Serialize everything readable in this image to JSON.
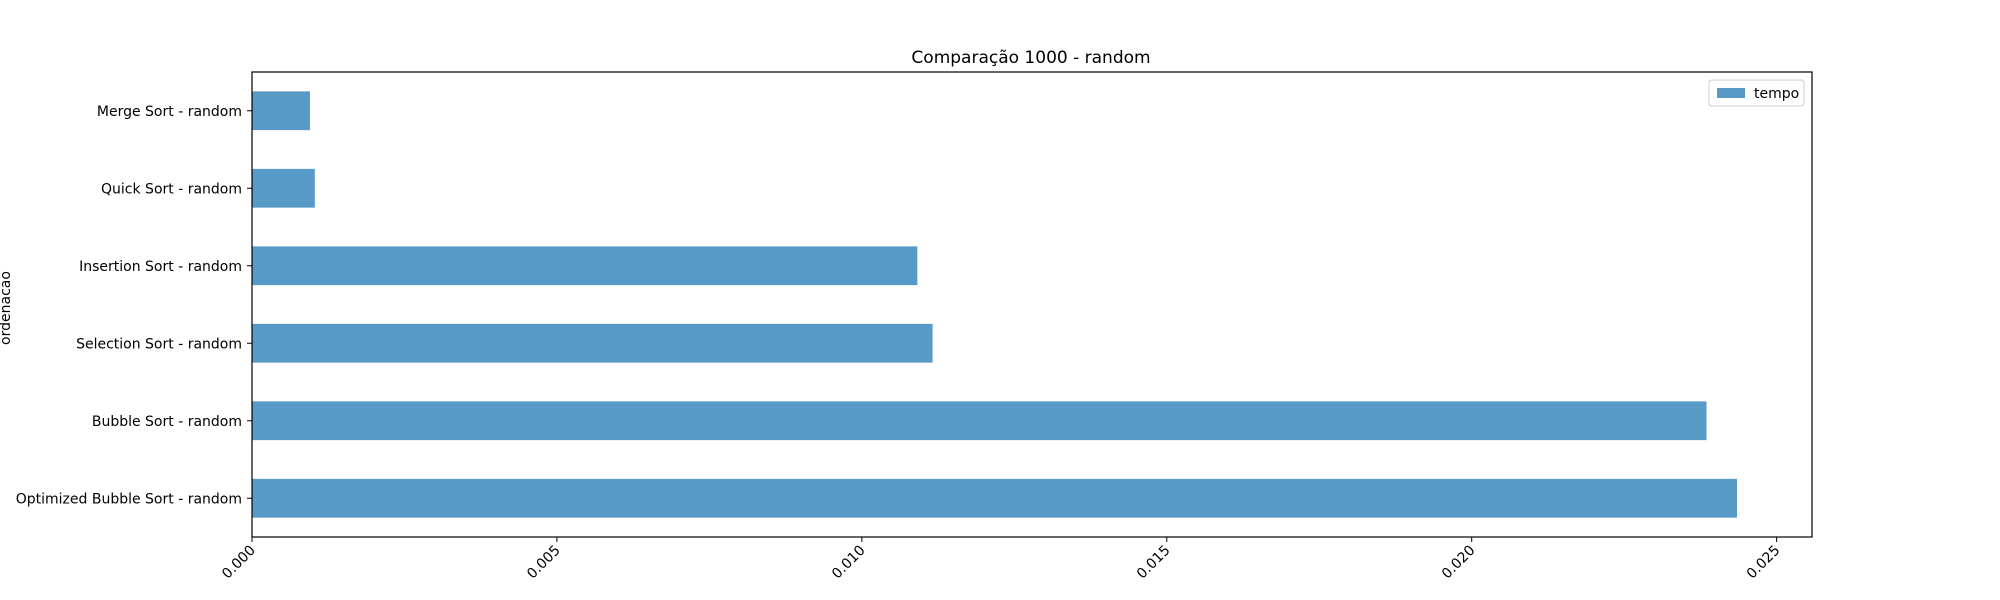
{
  "chart_data": {
    "type": "bar",
    "orientation": "horizontal",
    "title": "Comparação 1000 - random",
    "xlabel": "",
    "ylabel": "ordenacao",
    "categories": [
      "Merge Sort - random",
      "Quick Sort - random",
      "Insertion Sort - random",
      "Selection Sort - random",
      "Bubble Sort - random",
      "Optimized Bubble Sort - random"
    ],
    "series": [
      {
        "name": "tempo",
        "values": [
          0.00095,
          0.00103,
          0.01091,
          0.01116,
          0.02385,
          0.02435
        ]
      }
    ],
    "xlim": [
      0,
      0.02558
    ],
    "xticks": [
      "0.000",
      "0.005",
      "0.010",
      "0.015",
      "0.020",
      "0.025"
    ],
    "xtick_values": [
      0,
      0.005,
      0.01,
      0.015,
      0.02,
      0.025
    ],
    "grid": false,
    "legend_position": "top-right",
    "bar_color": "#5799c7"
  }
}
